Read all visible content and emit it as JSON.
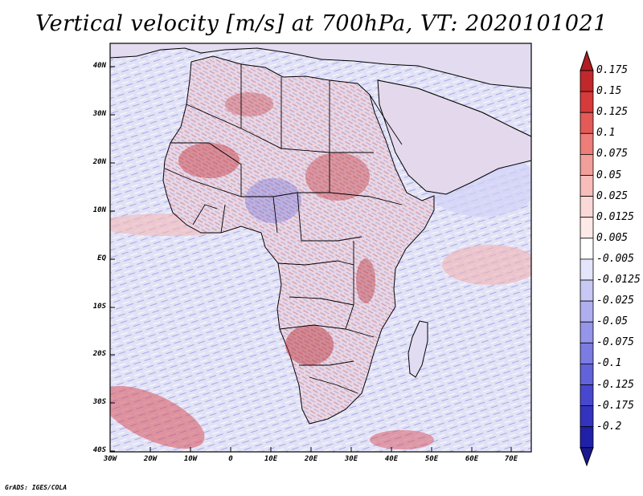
{
  "title": "Vertical velocity [m/s] at 700hPa, VT: 2020101021",
  "credit": "GrADS: IGES/COLA",
  "lat_labels": [
    "40N",
    "30N",
    "20N",
    "10N",
    "EQ",
    "10S",
    "20S",
    "30S",
    "40S"
  ],
  "lon_labels": [
    "30W",
    "20W",
    "10W",
    "0",
    "10E",
    "20E",
    "30E",
    "40E",
    "50E",
    "60E",
    "70E"
  ],
  "colorbar": {
    "labels": [
      "0.175",
      "0.15",
      "0.125",
      "0.1",
      "0.075",
      "0.05",
      "0.025",
      "0.0125",
      "0.005",
      "-0.005",
      "-0.0125",
      "-0.025",
      "-0.05",
      "-0.075",
      "-0.1",
      "-0.125",
      "-0.175",
      "-0.2"
    ],
    "colors": [
      "#c0282c",
      "#d63a3a",
      "#e45a57",
      "#ec7d79",
      "#f29e9a",
      "#f6bdbb",
      "#fad8d7",
      "#fde9e8",
      "#ffffff",
      "#e4e4fb",
      "#c8c8f5",
      "#afaff0",
      "#9595ea",
      "#7b7be2",
      "#6262da",
      "#4848cf",
      "#3333c0",
      "#2020a8"
    ]
  },
  "map": {
    "ocean_color": "#e2e2f6",
    "land_color": "#e7d6e4",
    "border_color": "#000000"
  }
}
